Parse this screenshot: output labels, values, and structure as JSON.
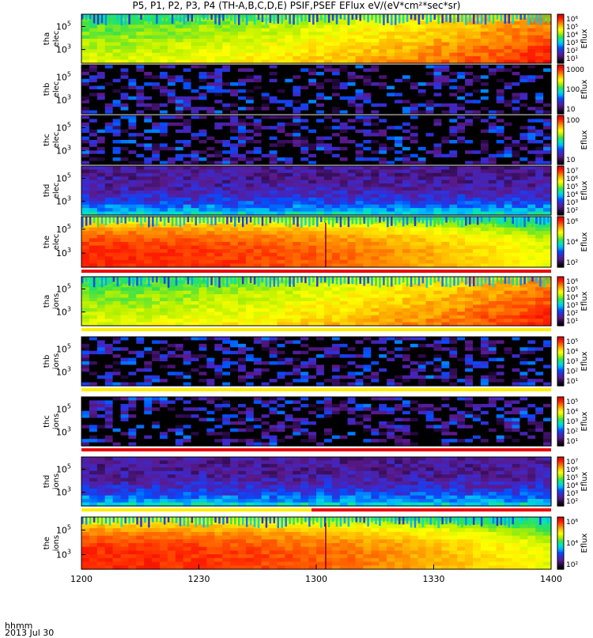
{
  "chart_data": {
    "type": "heatmap",
    "title": "P5, P1, P2, P3, P4 (TH-A,B,C,D,E) PSIF,PSEF EFlux eV/(eV*cm²*sec*sr)",
    "xlabel": "hhmm",
    "date_label": "2013 Jul 30",
    "x_ticks": [
      "1200",
      "1230",
      "1300",
      "1330",
      "1400"
    ],
    "x_range": [
      "1200",
      "1400"
    ],
    "y_scale": "log",
    "y_tick_exponents": [
      "3",
      "5"
    ],
    "colorbar_label": "Eflux",
    "panels": [
      {
        "probe": "tha",
        "species": "elec",
        "colorbar_ticks": [
          "10⁶",
          "10⁵",
          "10⁴",
          "10³",
          "10²",
          "10¹"
        ],
        "intensity": "high",
        "status_bar": ""
      },
      {
        "probe": "thb",
        "species": "elec",
        "colorbar_ticks": [
          "1000",
          "100",
          "10"
        ],
        "intensity": "sparse",
        "status_bar": ""
      },
      {
        "probe": "thc",
        "species": "elec",
        "colorbar_ticks": [
          "100",
          "10"
        ],
        "intensity": "sparse",
        "status_bar": ""
      },
      {
        "probe": "thd",
        "species": "elec",
        "colorbar_ticks": [
          "10⁷",
          "10⁶",
          "10⁵",
          "10⁴",
          "10³",
          "10²"
        ],
        "intensity": "low",
        "status_bar": ""
      },
      {
        "probe": "the",
        "species": "elec",
        "colorbar_ticks": [
          "10⁶",
          "10⁴",
          "10²"
        ],
        "intensity": "very-high",
        "status_bar": "red"
      },
      {
        "probe": "tha",
        "species": "ions",
        "colorbar_ticks": [
          "10⁶",
          "10⁵",
          "10⁴",
          "10³",
          "10²",
          "10¹"
        ],
        "intensity": "high",
        "status_bar": "yellow"
      },
      {
        "probe": "thb",
        "species": "ions",
        "colorbar_ticks": [
          "10⁵",
          "10⁴",
          "10³",
          "10²",
          "10¹"
        ],
        "intensity": "sparse",
        "status_bar": "yellow"
      },
      {
        "probe": "thc",
        "species": "ions",
        "colorbar_ticks": [
          "10⁵",
          "10⁴",
          "10³",
          "10²",
          "10¹"
        ],
        "intensity": "sparse",
        "status_bar": "red"
      },
      {
        "probe": "thd",
        "species": "ions",
        "colorbar_ticks": [
          "10⁷",
          "10⁶",
          "10⁵",
          "10⁴",
          "10³",
          "10²"
        ],
        "intensity": "low",
        "status_bar": "yellow-red"
      },
      {
        "probe": "the",
        "species": "ions",
        "colorbar_ticks": [
          "10⁶",
          "10⁴",
          "10²"
        ],
        "intensity": "very-high",
        "status_bar": ""
      }
    ],
    "colormap": [
      "#000000",
      "#2a0a4a",
      "#5a1a8c",
      "#3a2ad0",
      "#0050ff",
      "#00b4ff",
      "#00e6c8",
      "#30e050",
      "#b4f000",
      "#ffff00",
      "#ffc000",
      "#ff7000",
      "#ff2000",
      "#e00000"
    ],
    "grid": false,
    "legend_position": "right"
  }
}
